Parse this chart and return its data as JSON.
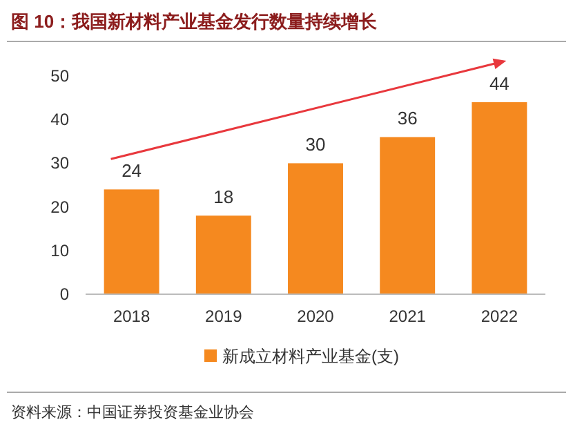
{
  "chart_data": {
    "type": "bar",
    "title": "图 10：我国新材料产业基金发行数量持续增长",
    "categories": [
      "2018",
      "2019",
      "2020",
      "2021",
      "2022"
    ],
    "series": [
      {
        "name": "新成立材料产业基金(支)",
        "color": "#f5891f",
        "values": [
          24,
          18,
          30,
          36,
          44
        ]
      }
    ],
    "ylim": [
      0,
      50
    ],
    "yticks": [
      0,
      10,
      20,
      30,
      40,
      50
    ],
    "grid": false,
    "legend": "bottom",
    "data_labels": true,
    "annotations": [
      "资料来源：中国证券投资基金业协会"
    ]
  }
}
